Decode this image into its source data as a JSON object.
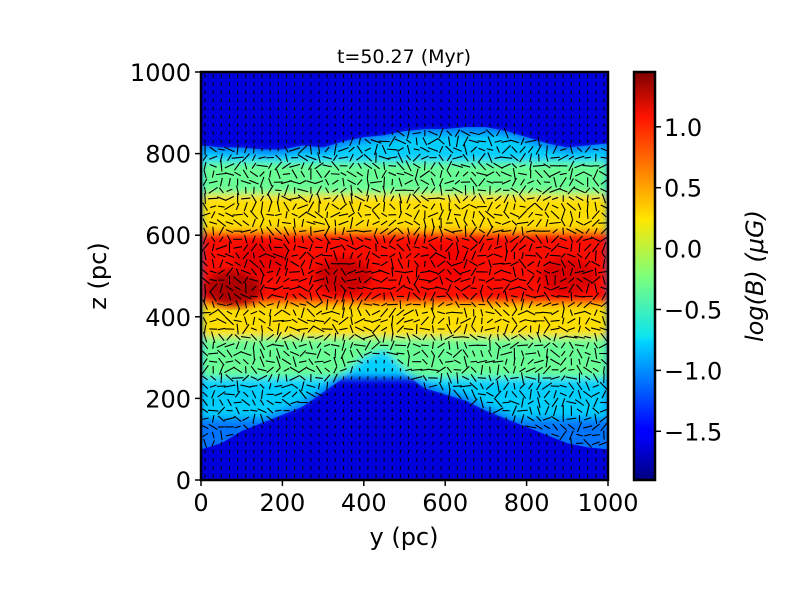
{
  "chart_data": {
    "type": "heatmap",
    "title": "t=50.27 (Myr)",
    "xlabel": "y (pc)",
    "ylabel": "z (pc)",
    "xlim": [
      0,
      1000
    ],
    "ylim": [
      0,
      1000
    ],
    "x_ticks": [
      0,
      200,
      400,
      600,
      800,
      1000
    ],
    "y_ticks": [
      0,
      200,
      400,
      600,
      800,
      1000
    ],
    "colorbar": {
      "label": "log(B) (μG)",
      "range": [
        -1.9,
        1.45
      ],
      "ticks": [
        1.0,
        0.5,
        0.0,
        -0.5,
        -1.0,
        -1.5
      ],
      "tick_labels": [
        "1.0",
        "0.5",
        "0.0",
        "−0.5",
        "−1.0",
        "−1.5"
      ],
      "colormap": "jet"
    },
    "field": {
      "description_values": "log(B) in μG; strongest (≈1.0–1.3) in mid-plane band z≈450–600 pc, falling to ≈-1.6 outside the layer",
      "upper_boundary": [
        [
          0,
          820
        ],
        [
          50,
          815
        ],
        [
          100,
          815
        ],
        [
          150,
          810
        ],
        [
          200,
          810
        ],
        [
          250,
          820
        ],
        [
          300,
          815
        ],
        [
          350,
          830
        ],
        [
          400,
          840
        ],
        [
          450,
          845
        ],
        [
          500,
          855
        ],
        [
          550,
          860
        ],
        [
          600,
          860
        ],
        [
          650,
          865
        ],
        [
          700,
          865
        ],
        [
          750,
          855
        ],
        [
          800,
          840
        ],
        [
          850,
          825
        ],
        [
          900,
          815
        ],
        [
          950,
          820
        ],
        [
          1000,
          825
        ]
      ],
      "lower_boundary": [
        [
          0,
          75
        ],
        [
          50,
          90
        ],
        [
          100,
          120
        ],
        [
          150,
          140
        ],
        [
          200,
          160
        ],
        [
          250,
          180
        ],
        [
          300,
          215
        ],
        [
          350,
          250
        ],
        [
          400,
          290
        ],
        [
          450,
          310
        ],
        [
          500,
          260
        ],
        [
          550,
          225
        ],
        [
          600,
          210
        ],
        [
          650,
          195
        ],
        [
          700,
          170
        ],
        [
          750,
          150
        ],
        [
          800,
          130
        ],
        [
          850,
          110
        ],
        [
          900,
          90
        ],
        [
          950,
          80
        ],
        [
          1000,
          75
        ]
      ],
      "bands": [
        {
          "z_from": 430,
          "z_to": 610,
          "logB": 1.0
        },
        {
          "z_from": 350,
          "z_to": 430,
          "logB": 0.3
        },
        {
          "z_from": 610,
          "z_to": 700,
          "logB": 0.3
        },
        {
          "z_from": 700,
          "z_to": 780,
          "logB": -0.3
        },
        {
          "z_from": 780,
          "z_to": 850,
          "logB": -0.8
        },
        {
          "z_from": 250,
          "z_to": 350,
          "logB": -0.3
        },
        {
          "z_from": 150,
          "z_to": 250,
          "logB": -0.8
        }
      ],
      "outside_logB": -1.6,
      "hotspots": [
        {
          "y": 80,
          "z": 470,
          "logB": 1.3
        },
        {
          "y": 350,
          "z": 500,
          "logB": 1.2
        },
        {
          "y": 150,
          "z": 540,
          "logB": 1.1
        },
        {
          "y": 600,
          "z": 530,
          "logB": 1.05
        },
        {
          "y": 900,
          "z": 500,
          "logB": 1.15
        }
      ]
    },
    "vectors": {
      "present": true,
      "grid_spacing_pc": 20,
      "color": "#000000"
    }
  }
}
